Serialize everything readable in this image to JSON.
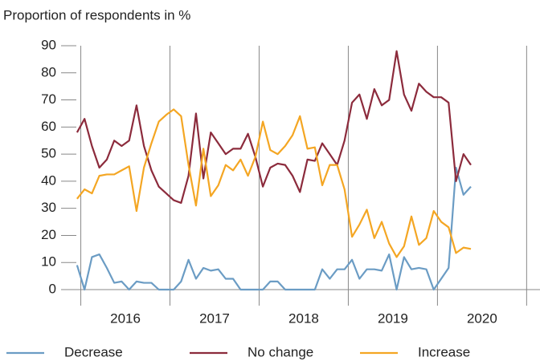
{
  "chart_data": {
    "type": "line",
    "ylabel": "Proportion of respondents in %",
    "x": [
      2015.958,
      2016.042,
      2016.125,
      2016.208,
      2016.292,
      2016.375,
      2016.458,
      2016.542,
      2016.625,
      2016.708,
      2016.792,
      2016.875,
      2016.958,
      2017.042,
      2017.125,
      2017.208,
      2017.292,
      2017.375,
      2017.458,
      2017.542,
      2017.625,
      2017.708,
      2017.792,
      2017.875,
      2017.958,
      2018.042,
      2018.125,
      2018.208,
      2018.292,
      2018.375,
      2018.458,
      2018.542,
      2018.625,
      2018.708,
      2018.792,
      2018.875,
      2018.958,
      2019.042,
      2019.125,
      2019.208,
      2019.292,
      2019.375,
      2019.458,
      2019.542,
      2019.625,
      2019.708,
      2019.792,
      2019.875,
      2019.958,
      2020.042,
      2020.125,
      2020.208,
      2020.292,
      2020.375
    ],
    "series": [
      {
        "name": "Decrease",
        "color": "#6b9cc4",
        "values": [
          9,
          0,
          12,
          13,
          8,
          2.5,
          3,
          0,
          3,
          2.5,
          2.5,
          0,
          0,
          0,
          3,
          11,
          4,
          8,
          7,
          7.5,
          4,
          4,
          0,
          0,
          0,
          0,
          3,
          3,
          0,
          0,
          0,
          0,
          0,
          7.5,
          4,
          7.5,
          7.5,
          11,
          4,
          7.5,
          7.5,
          7,
          13,
          0,
          12,
          7.5,
          8,
          7.5,
          0,
          4,
          8,
          45,
          35,
          38
        ]
      },
      {
        "name": "No change",
        "color": "#8c2b3c",
        "values": [
          58,
          63,
          53,
          45,
          48,
          55,
          53,
          55,
          68,
          53,
          44,
          38,
          35.5,
          33,
          32,
          42,
          65,
          41,
          58,
          54,
          50,
          52,
          52,
          57.5,
          49,
          38,
          45,
          46.5,
          46,
          42,
          36,
          48,
          47.5,
          54,
          50,
          46,
          55,
          69,
          72,
          63,
          74,
          68,
          70,
          88,
          72,
          66,
          76,
          73,
          71,
          71,
          69,
          40,
          50,
          46
        ]
      },
      {
        "name": "Increase",
        "color": "#f4a623",
        "values": [
          33.5,
          37,
          35.5,
          42,
          42.5,
          42.5,
          44,
          45.5,
          29,
          45,
          54,
          62,
          64.5,
          66.5,
          64,
          46,
          31,
          52,
          34.5,
          38.5,
          46,
          44,
          48,
          42,
          49,
          62,
          51.5,
          50,
          53,
          57,
          64,
          52,
          52.5,
          38.5,
          46,
          46,
          37,
          19.5,
          24,
          29.5,
          19,
          25,
          17,
          12,
          16,
          27,
          16.5,
          19,
          29,
          25,
          23,
          13.5,
          15.5,
          15
        ]
      }
    ],
    "xlim": [
      2015.95,
      2021.15
    ],
    "xticks": [
      {
        "value": 2016.5,
        "label": "2016"
      },
      {
        "value": 2017.5,
        "label": "2017"
      },
      {
        "value": 2018.5,
        "label": "2018"
      },
      {
        "value": 2019.5,
        "label": "2019"
      },
      {
        "value": 2020.5,
        "label": "2020"
      }
    ],
    "xgrid": [
      2016,
      2017,
      2018,
      2019,
      2020,
      2021
    ],
    "ylim": [
      0,
      90
    ],
    "yticks": [
      0,
      10,
      20,
      30,
      40,
      50,
      60,
      70,
      80,
      90
    ],
    "legend": "bottom"
  }
}
